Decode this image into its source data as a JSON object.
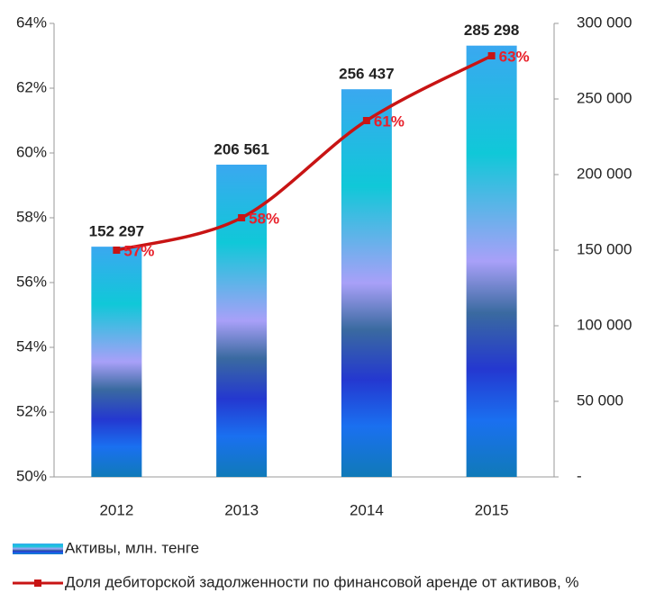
{
  "chart_data": {
    "type": "bar-line",
    "categories": [
      "2012",
      "2013",
      "2014",
      "2015"
    ],
    "series": [
      {
        "name": "Активы, млн. тенге",
        "type": "bar",
        "axis": "y2",
        "color": "#2a9fe0",
        "values": [
          152297,
          206561,
          256437,
          285298
        ],
        "value_labels": [
          "152 297",
          "206 561",
          "256 437",
          "285 298"
        ]
      },
      {
        "name": "Доля дебиторской задолженности по финансовой аренде от активов, %",
        "type": "line",
        "axis": "y",
        "color": "#c81414",
        "values": [
          57,
          58,
          61,
          63
        ],
        "value_labels": [
          "57%",
          "58%",
          "61%",
          "63%"
        ]
      }
    ],
    "ylim": [
      50,
      64
    ],
    "yticks": [
      {
        "value": 50,
        "label": "50%"
      },
      {
        "value": 52,
        "label": "52%"
      },
      {
        "value": 54,
        "label": "54%"
      },
      {
        "value": 56,
        "label": "56%"
      },
      {
        "value": 58,
        "label": "58%"
      },
      {
        "value": 60,
        "label": "60%"
      },
      {
        "value": 62,
        "label": "62%"
      },
      {
        "value": 64,
        "label": "64%"
      }
    ],
    "y2lim": [
      0,
      300000
    ],
    "y2ticks": [
      {
        "value": 0,
        "label": "-"
      },
      {
        "value": 50000,
        "label": "50 000"
      },
      {
        "value": 100000,
        "label": "100 000"
      },
      {
        "value": 150000,
        "label": "150 000"
      },
      {
        "value": 200000,
        "label": "200 000"
      },
      {
        "value": 250000,
        "label": "250 000"
      },
      {
        "value": 300000,
        "label": "300 000"
      }
    ],
    "grid": false
  }
}
